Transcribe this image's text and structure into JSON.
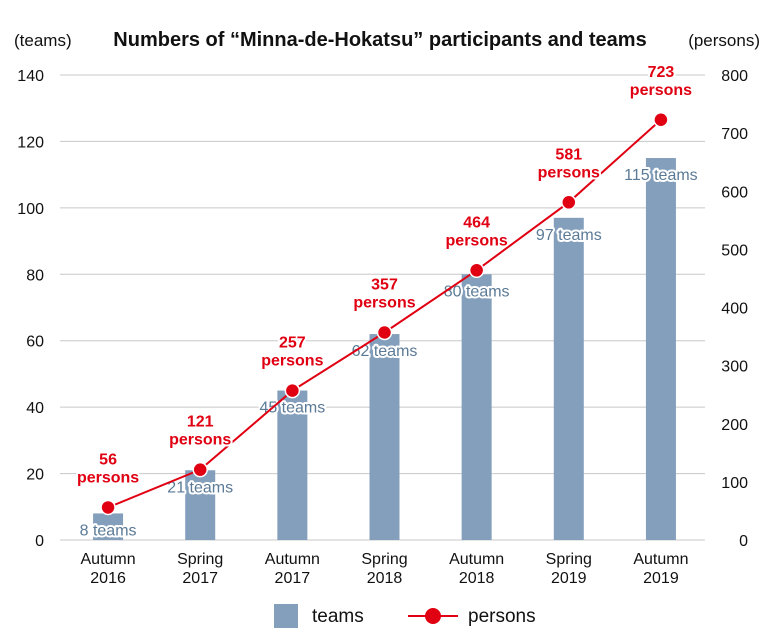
{
  "chart_data": {
    "type": "bar",
    "title": "Numbers of “Minna-de-Hokatsu” participants and teams",
    "y_left_unit": "(teams)",
    "y_right_unit": "(persons)",
    "categories": [
      [
        "Autumn",
        "2016"
      ],
      [
        "Spring",
        "2017"
      ],
      [
        "Autumn",
        "2017"
      ],
      [
        "Spring",
        "2018"
      ],
      [
        "Autumn",
        "2018"
      ],
      [
        "Spring",
        "2019"
      ],
      [
        "Autumn",
        "2019"
      ]
    ],
    "y_left_ticks": [
      "0",
      "20",
      "40",
      "60",
      "80",
      "100",
      "120",
      "140"
    ],
    "y_right_ticks": [
      "0",
      "100",
      "200",
      "300",
      "400",
      "500",
      "600",
      "700",
      "800"
    ],
    "ylim_left": [
      0,
      140
    ],
    "ylim_right": [
      0,
      800
    ],
    "grid": true,
    "legend_position": "bottom",
    "series": [
      {
        "name": "teams",
        "type": "bar",
        "axis": "left",
        "color": "#849fbc",
        "values": [
          8,
          21,
          45,
          62,
          80,
          97,
          115
        ],
        "labels": [
          "8 teams",
          "21 teams",
          "45 teams",
          "62 teams",
          "80 teams",
          "97 teams",
          "115 teams"
        ]
      },
      {
        "name": "persons",
        "type": "line",
        "axis": "right",
        "color": "#e00012",
        "values": [
          56,
          121,
          257,
          357,
          464,
          581,
          723
        ],
        "labels": [
          "56",
          "121",
          "257",
          "357",
          "464",
          "581",
          "723"
        ],
        "label_unit": "persons"
      }
    ]
  }
}
